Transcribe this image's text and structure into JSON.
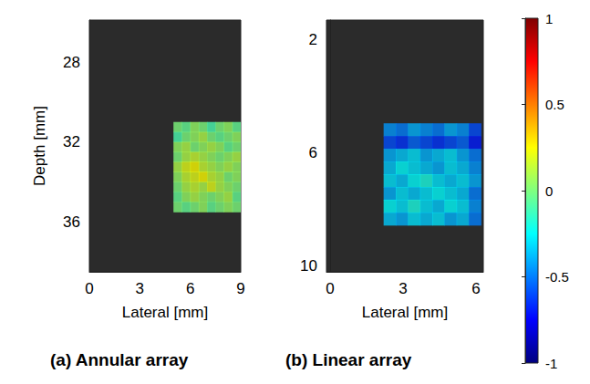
{
  "chart_data": [
    {
      "type": "heatmap",
      "panel": "(a)",
      "title": "Annular array",
      "x_label": "Lateral [mm]",
      "y_label": "Depth [mm]",
      "xlim": [
        0,
        9
      ],
      "xticks": [
        0,
        3,
        6,
        9
      ],
      "ylim": [
        25.9,
        38.5
      ],
      "yticks": [
        28,
        32,
        36
      ],
      "cells": {
        "x_edges": [
          5.0,
          5.5,
          6.0,
          6.5,
          7.0,
          7.5,
          8.0,
          8.5,
          9.0
        ],
        "y_edges": [
          31.0,
          31.5,
          32.0,
          32.5,
          33.0,
          33.5,
          34.0,
          34.5,
          35.0,
          35.5
        ],
        "values": [
          [
            0.0,
            -0.05,
            0.05,
            0.0,
            -0.1,
            0.0,
            0.05,
            -0.05
          ],
          [
            -0.1,
            0.0,
            0.05,
            0.1,
            0.0,
            -0.05,
            0.0,
            0.05
          ],
          [
            0.05,
            0.1,
            0.0,
            0.05,
            0.1,
            0.05,
            -0.05,
            0.0
          ],
          [
            0.0,
            0.1,
            0.15,
            0.1,
            0.05,
            0.0,
            0.05,
            0.1
          ],
          [
            0.1,
            0.2,
            0.25,
            0.15,
            0.1,
            0.05,
            0.1,
            0.05
          ],
          [
            0.05,
            0.15,
            0.2,
            0.25,
            0.15,
            0.1,
            0.0,
            0.05
          ],
          [
            0.0,
            0.1,
            0.15,
            0.1,
            0.2,
            0.1,
            0.05,
            0.0
          ],
          [
            -0.05,
            0.05,
            0.1,
            0.05,
            0.0,
            0.05,
            0.1,
            -0.05
          ],
          [
            0.0,
            -0.05,
            0.0,
            0.05,
            -0.05,
            0.0,
            0.05,
            0.0
          ]
        ]
      }
    },
    {
      "type": "heatmap",
      "panel": "(b)",
      "title": "Linear array",
      "x_label": "Lateral [mm]",
      "xlim": [
        -0.15,
        6.3
      ],
      "xticks": [
        0,
        3,
        6
      ],
      "ylim": [
        1.3,
        10.2
      ],
      "yticks": [
        2,
        6,
        10
      ],
      "cells": {
        "x_edges": [
          2.2,
          2.7,
          3.2,
          3.7,
          4.2,
          4.7,
          5.2,
          5.7,
          6.2
        ],
        "y_edges": [
          4.95,
          5.4,
          5.85,
          6.3,
          6.75,
          7.2,
          7.65,
          8.1,
          8.55
        ],
        "values": [
          [
            -0.45,
            -0.5,
            -0.4,
            -0.45,
            -0.5,
            -0.4,
            -0.45,
            -0.6
          ],
          [
            -0.6,
            -0.65,
            -0.55,
            -0.6,
            -0.65,
            -0.6,
            -0.55,
            -0.7
          ],
          [
            -0.4,
            -0.35,
            -0.3,
            -0.4,
            -0.35,
            -0.3,
            -0.4,
            -0.5
          ],
          [
            -0.35,
            -0.25,
            -0.3,
            -0.35,
            -0.4,
            -0.3,
            -0.35,
            -0.45
          ],
          [
            -0.3,
            -0.35,
            -0.25,
            -0.2,
            -0.3,
            -0.35,
            -0.3,
            -0.4
          ],
          [
            -0.4,
            -0.3,
            -0.35,
            -0.3,
            -0.25,
            -0.3,
            -0.35,
            -0.5
          ],
          [
            -0.25,
            -0.3,
            -0.2,
            -0.3,
            -0.35,
            -0.25,
            -0.3,
            -0.45
          ],
          [
            -0.35,
            -0.4,
            -0.3,
            -0.35,
            -0.3,
            -0.4,
            -0.35,
            -0.5
          ]
        ]
      }
    }
  ],
  "colorbar": {
    "range": [
      -1,
      1
    ],
    "ticks": [
      -1,
      -0.5,
      0,
      0.5,
      1
    ]
  }
}
